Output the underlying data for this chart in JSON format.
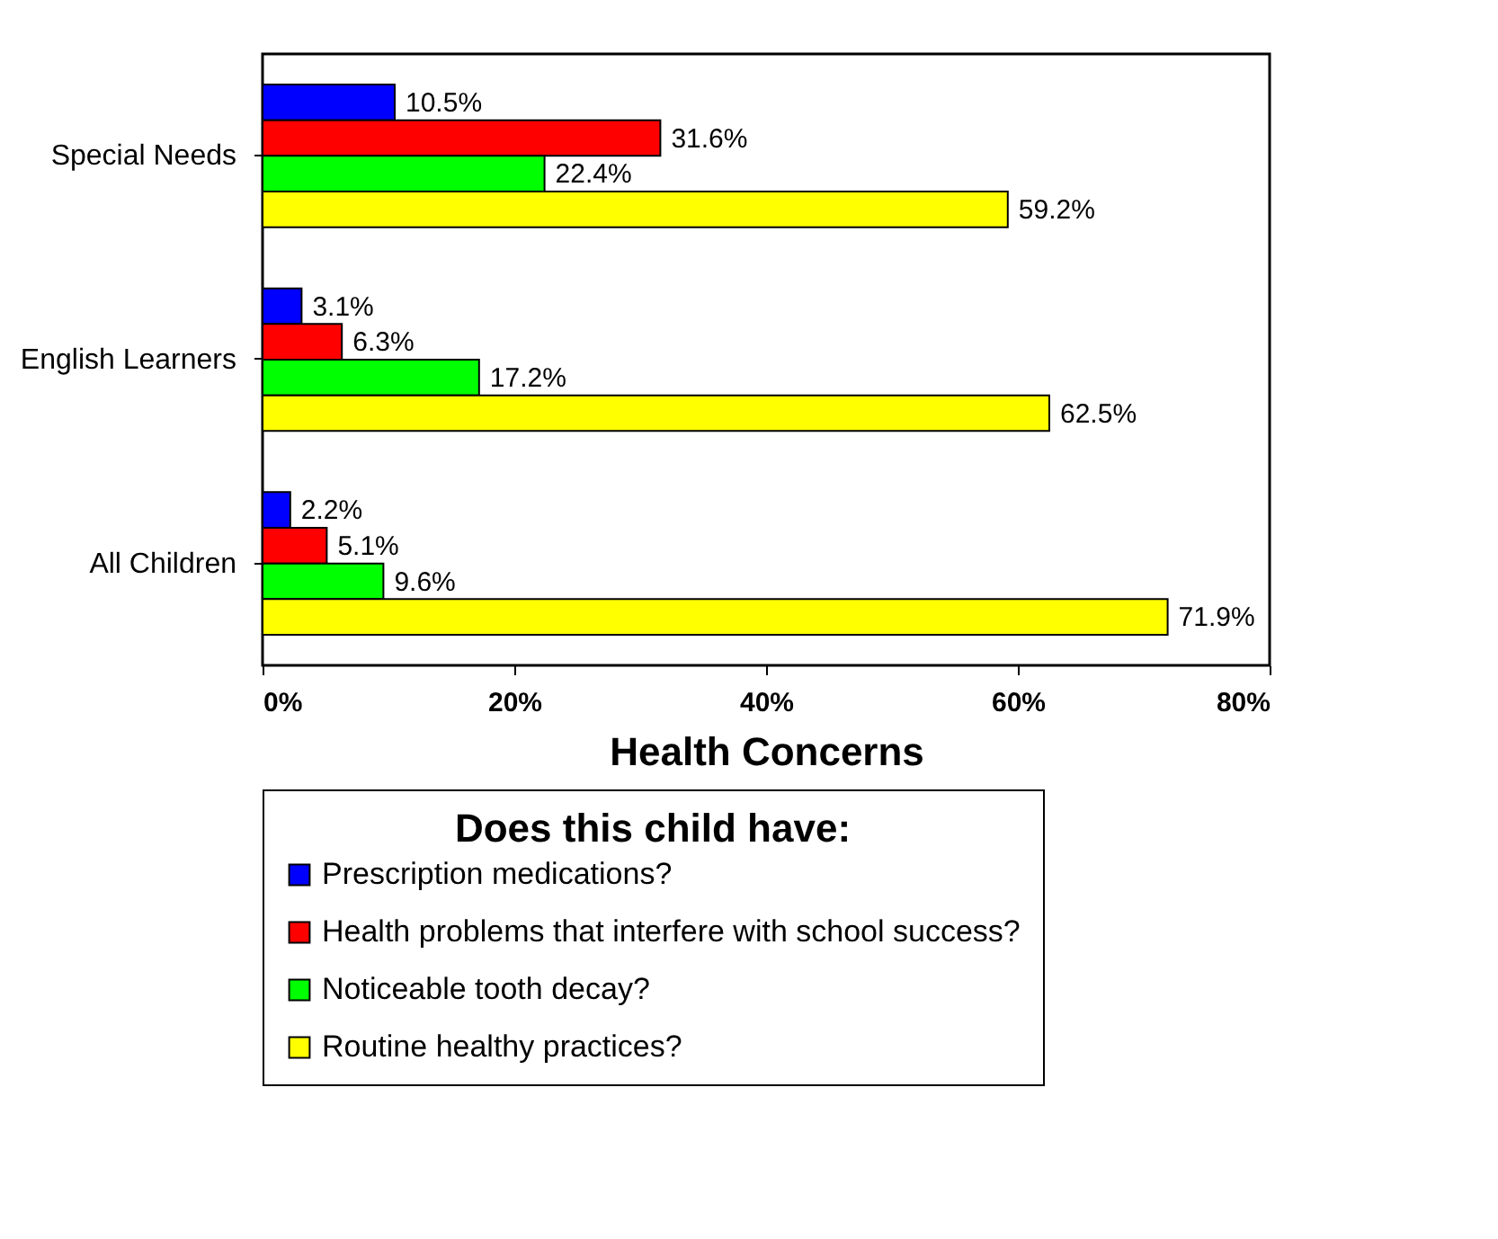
{
  "chart_data": {
    "type": "bar",
    "orientation": "horizontal",
    "xlabel": "Health Concerns",
    "legend_title": "Does this child have:",
    "categories": [
      "Special Needs",
      "English Learners",
      "All Children"
    ],
    "series": [
      {
        "name": "Prescription medications?",
        "color": "#0000ff",
        "values": [
          10.5,
          3.1,
          2.2
        ],
        "value_labels": [
          "10.5%",
          "3.1%",
          "2.2%"
        ]
      },
      {
        "name": "Health problems that interfere with school success?",
        "color": "#ff0000",
        "values": [
          31.6,
          6.3,
          5.1
        ],
        "value_labels": [
          "31.6%",
          "6.3%",
          "5.1%"
        ]
      },
      {
        "name": "Noticeable tooth decay?",
        "color": "#00ff00",
        "values": [
          22.4,
          17.2,
          9.6
        ],
        "value_labels": [
          "22.4%",
          "17.2%",
          "9.6%"
        ]
      },
      {
        "name": "Routine healthy practices?",
        "color": "#ffff00",
        "values": [
          59.2,
          62.5,
          71.9
        ],
        "value_labels": [
          "59.2%",
          "62.5%",
          "71.9%"
        ]
      }
    ],
    "xlim": [
      0,
      80
    ],
    "xticks": [
      {
        "value": 0,
        "label": "0%"
      },
      {
        "value": 20,
        "label": "20%"
      },
      {
        "value": 40,
        "label": "40%"
      },
      {
        "value": 60,
        "label": "60%"
      },
      {
        "value": 80,
        "label": "80%"
      }
    ],
    "grid": false,
    "legend": "bottom"
  }
}
